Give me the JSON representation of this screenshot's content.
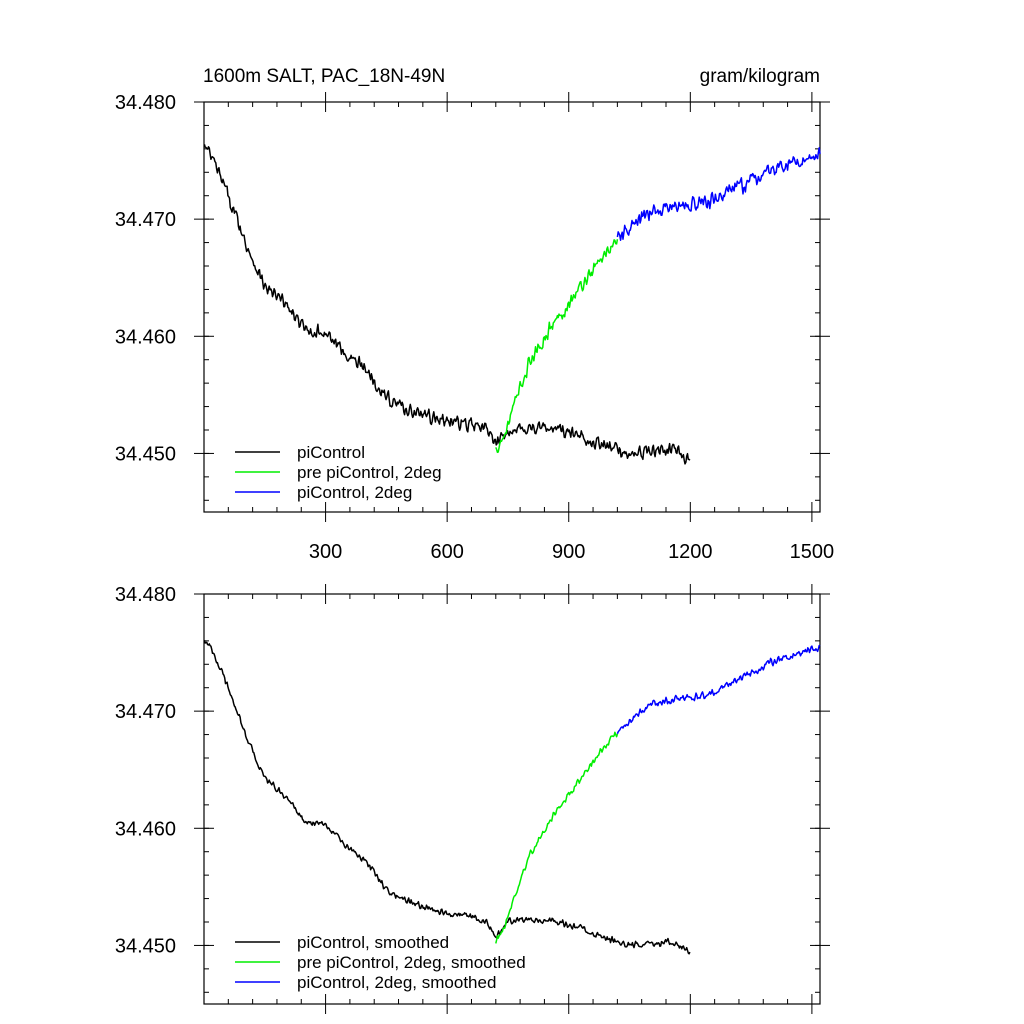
{
  "figure": {
    "title_left": "1600m SALT, PAC_18N-49N",
    "title_right": "gram/kilogram"
  },
  "chart_data": [
    {
      "type": "line",
      "panel": "top",
      "xlim": [
        0,
        1520
      ],
      "ylim": [
        34.445,
        34.48
      ],
      "xticks": [
        300,
        600,
        900,
        1200,
        1500
      ],
      "xtick_labels": [
        "300",
        "600",
        "900",
        "1200",
        "1500"
      ],
      "yticks": [
        34.45,
        34.46,
        34.47,
        34.48
      ],
      "ytick_labels": [
        "34.450",
        "34.460",
        "34.470",
        "34.480"
      ],
      "legend_position": "bottom-left",
      "series": [
        {
          "name": "piControl",
          "color": "#000000",
          "x": [
            1,
            20,
            50,
            80,
            100,
            150,
            200,
            250,
            300,
            350,
            400,
            450,
            500,
            550,
            600,
            650,
            700,
            720,
            750,
            800,
            850,
            900,
            950,
            1000,
            1050,
            1100,
            1150,
            1200
          ],
          "y": [
            34.4762,
            34.4752,
            34.4728,
            34.4702,
            34.4682,
            34.4642,
            34.4628,
            34.4605,
            34.4603,
            34.4585,
            34.4572,
            34.4548,
            34.4538,
            34.4532,
            34.4528,
            34.4525,
            34.452,
            34.4506,
            34.452,
            34.4522,
            34.4522,
            34.4518,
            34.4512,
            34.4505,
            34.45,
            34.4502,
            34.4503,
            34.4495
          ],
          "noise": 0.0007
        },
        {
          "name": "pre piControl, 2deg",
          "color": "#00ee00",
          "x": [
            720,
            740,
            760,
            780,
            800,
            850,
            900,
            950,
            1000,
            1020
          ],
          "y": [
            34.4503,
            34.4515,
            34.4535,
            34.4555,
            34.4575,
            34.4605,
            34.4628,
            34.4652,
            34.4675,
            34.4682
          ],
          "noise": 0.0007
        },
        {
          "name": "piControl, 2deg",
          "color": "#0000ff",
          "x": [
            1020,
            1050,
            1100,
            1150,
            1200,
            1250,
            1300,
            1350,
            1400,
            1450,
            1500,
            1520
          ],
          "y": [
            34.4682,
            34.4692,
            34.4705,
            34.471,
            34.4712,
            34.4715,
            34.4725,
            34.4732,
            34.4742,
            34.4748,
            34.4753,
            34.4755
          ],
          "noise": 0.0008
        }
      ]
    },
    {
      "type": "line",
      "panel": "bottom",
      "xlim": [
        0,
        1520
      ],
      "ylim": [
        34.445,
        34.48
      ],
      "xticks": [
        300,
        600,
        900,
        1200,
        1500
      ],
      "yticks": [
        34.45,
        34.46,
        34.47,
        34.48
      ],
      "ytick_labels": [
        "34.450",
        "34.460",
        "34.470",
        "34.480"
      ],
      "legend_position": "bottom-left",
      "series": [
        {
          "name": "piControl, smoothed",
          "color": "#000000",
          "x": [
            1,
            20,
            50,
            80,
            100,
            150,
            200,
            250,
            300,
            350,
            400,
            450,
            500,
            550,
            600,
            650,
            700,
            720,
            750,
            800,
            850,
            900,
            950,
            1000,
            1050,
            1100,
            1150,
            1200
          ],
          "y": [
            34.4762,
            34.4752,
            34.4728,
            34.4702,
            34.4682,
            34.4642,
            34.4628,
            34.4605,
            34.4603,
            34.4585,
            34.4572,
            34.4548,
            34.4538,
            34.4532,
            34.4528,
            34.4525,
            34.452,
            34.4506,
            34.452,
            34.4522,
            34.4522,
            34.4518,
            34.4512,
            34.4505,
            34.45,
            34.4502,
            34.4503,
            34.4495
          ],
          "noise": 0.00035
        },
        {
          "name": "pre piControl, 2deg, smoothed",
          "color": "#00ee00",
          "x": [
            720,
            740,
            760,
            780,
            800,
            850,
            900,
            950,
            1000,
            1020
          ],
          "y": [
            34.4503,
            34.4515,
            34.4535,
            34.4555,
            34.4575,
            34.4605,
            34.4628,
            34.4652,
            34.4675,
            34.4682
          ],
          "noise": 0.00035
        },
        {
          "name": "piControl, 2deg, smoothed",
          "color": "#0000ff",
          "x": [
            1020,
            1050,
            1100,
            1150,
            1200,
            1250,
            1300,
            1350,
            1400,
            1450,
            1500,
            1520
          ],
          "y": [
            34.4682,
            34.4692,
            34.4705,
            34.471,
            34.4712,
            34.4715,
            34.4725,
            34.4732,
            34.4742,
            34.4748,
            34.4753,
            34.4755
          ],
          "noise": 0.0004
        }
      ]
    }
  ]
}
